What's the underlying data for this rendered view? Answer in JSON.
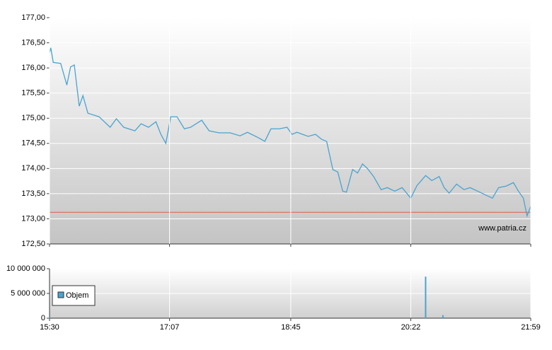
{
  "chart_data": [
    {
      "type": "line",
      "x": [
        "15:30",
        "15:31",
        "15:33",
        "15:39",
        "15:44",
        "15:47",
        "15:50",
        "15:54",
        "15:57",
        "16:01",
        "16:10",
        "16:19",
        "16:24",
        "16:30",
        "16:39",
        "16:44",
        "16:50",
        "16:56",
        "17:00",
        "17:04",
        "17:08",
        "17:13",
        "17:19",
        "17:24",
        "17:33",
        "17:39",
        "17:47",
        "17:56",
        "18:04",
        "18:10",
        "18:19",
        "18:24",
        "18:29",
        "18:36",
        "18:42",
        "18:46",
        "18:50",
        "18:59",
        "19:05",
        "19:10",
        "19:14",
        "19:19",
        "19:23",
        "19:27",
        "19:30",
        "19:35",
        "19:39",
        "19:43",
        "19:47",
        "19:52",
        "19:58",
        "20:03",
        "20:09",
        "20:15",
        "20:22",
        "20:27",
        "20:34",
        "20:39",
        "20:45",
        "20:49",
        "20:53",
        "20:59",
        "21:05",
        "21:10",
        "21:16",
        "21:22",
        "21:28",
        "21:33",
        "21:39",
        "21:45",
        "21:49",
        "21:53",
        "21:56",
        "21:59"
      ],
      "values": [
        176.3,
        176.4,
        176.11,
        176.09,
        175.66,
        176.02,
        176.06,
        175.24,
        175.45,
        175.1,
        175.03,
        174.82,
        174.99,
        174.82,
        174.75,
        174.89,
        174.82,
        174.93,
        174.68,
        174.5,
        175.03,
        175.03,
        174.79,
        174.82,
        174.96,
        174.75,
        174.71,
        174.71,
        174.65,
        174.72,
        174.61,
        174.54,
        174.79,
        174.79,
        174.82,
        174.68,
        174.72,
        174.64,
        174.68,
        174.58,
        174.54,
        173.98,
        173.93,
        173.55,
        173.53,
        173.98,
        173.91,
        174.09,
        174.0,
        173.84,
        173.58,
        173.62,
        173.55,
        173.62,
        173.41,
        173.66,
        173.86,
        173.76,
        173.84,
        173.62,
        173.51,
        173.69,
        173.58,
        173.62,
        173.55,
        173.48,
        173.41,
        173.62,
        173.65,
        173.72,
        173.55,
        173.41,
        173.06,
        173.25
      ],
      "color": "#4ba3cf",
      "xlim": [
        "15:30",
        "21:59"
      ],
      "ylim": [
        172.5,
        177
      ],
      "yticks": [
        {
          "value": 172.5,
          "label": "172,50"
        },
        {
          "value": 173,
          "label": "173,00"
        },
        {
          "value": 173.5,
          "label": "173,50"
        },
        {
          "value": 174,
          "label": "174,00"
        },
        {
          "value": 174.5,
          "label": "174,50"
        },
        {
          "value": 175,
          "label": "175,00"
        },
        {
          "value": 175.5,
          "label": "175,50"
        },
        {
          "value": 176,
          "label": "176,00"
        },
        {
          "value": 176.5,
          "label": "176,50"
        },
        {
          "value": 177,
          "label": "177,00"
        }
      ],
      "reference_line": 173.13,
      "reference_color": "#e05a4a",
      "watermark": "www.patria.cz",
      "grid": true
    },
    {
      "type": "bar",
      "x": [
        "15:30",
        "20:34",
        "20:48"
      ],
      "series": [
        {
          "name": "Objem",
          "color": "#4ba3cf",
          "values": [
            150000,
            8400000,
            600000
          ]
        }
      ],
      "xlim": [
        "15:30",
        "21:59"
      ],
      "xticks": [
        "15:30",
        "17:07",
        "18:45",
        "20:22",
        "21:59"
      ],
      "ylim": [
        0,
        10000000
      ],
      "yticks": [
        0,
        {
          "value": 5000000,
          "label": "5 000 000"
        },
        {
          "value": 10000000,
          "label": "10 000 000"
        }
      ],
      "legend": "left",
      "grid": true
    }
  ]
}
